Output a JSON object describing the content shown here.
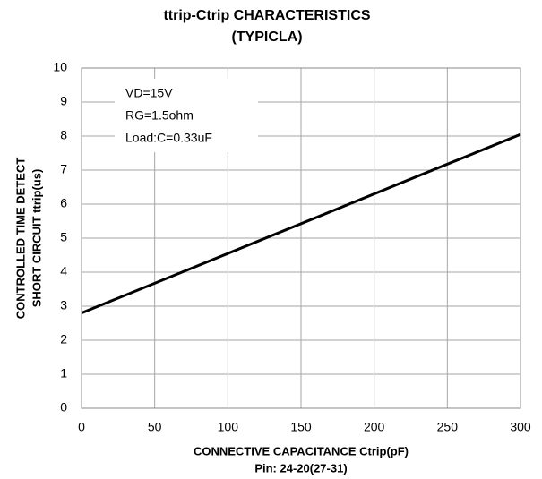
{
  "chart_data": {
    "type": "line",
    "title": "ttrip-Ctrip CHARACTERISTICS",
    "subtitle": "(TYPICLA)",
    "y_label": [
      "CONTROLLED TIME DETECT",
      "SHORT CIRCUIT ttrip(us)"
    ],
    "x_label": [
      "CONNECTIVE CAPACITANCE Ctrip(pF)",
      "Pin: 24-20(27-31)"
    ],
    "annotation": [
      "VD=15V",
      "RG=1.5ohm",
      "Load:C=0.33uF"
    ],
    "x": [
      0,
      300
    ],
    "series": [
      {
        "color": "#000000",
        "values": [
          2.8,
          8.05
        ]
      }
    ],
    "xlim": [
      0,
      300
    ],
    "xticks": [
      0,
      50,
      100,
      150,
      200,
      250,
      300
    ],
    "ylim": [
      0,
      10
    ],
    "yticks": [
      0,
      1,
      2,
      3,
      4,
      5,
      6,
      7,
      8,
      9,
      10
    ],
    "grid": true
  }
}
